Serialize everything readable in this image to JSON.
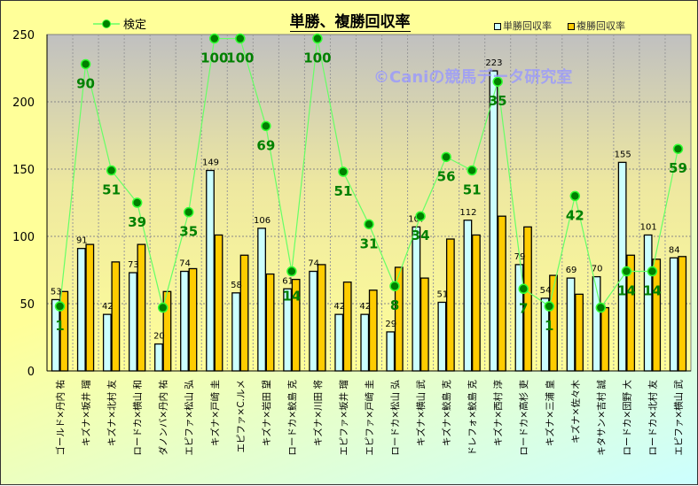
{
  "chart_data": {
    "type": "bar",
    "title": "単勝、複勝回収率",
    "watermark": "©Caniの競馬データ研究室",
    "ylim": [
      0,
      250
    ],
    "yticks": [
      0,
      50,
      100,
      150,
      200,
      250
    ],
    "grid": true,
    "categories": [
      "ゴールド×丹内 祐",
      "キズナ×坂井 瑠",
      "キズナ×北村 友",
      "ロードカ×横山 和",
      "ダノンバ×丹内 祐",
      "エピファ×松山 弘",
      "キズナ×戸崎 圭",
      "エピファ×C.ルメ",
      "キズナ×岩田 望",
      "ロードカ×鮫島 克",
      "キズナ×川田 将",
      "エピファ×坂井 瑠",
      "エピファ×戸崎 圭",
      "ロードカ×松山 弘",
      "キズナ×横山 武",
      "キズナ×鮫島 克",
      "ドレフォ×鮫島 克",
      "キズナ×西村 淳",
      "ロードカ×高杉 吏",
      "キズナ×三浦 皇",
      "キズナ×佐々木",
      "キタサン×吉村 誠",
      "ロードカ×団野 大",
      "ロードカ×北村 友",
      "エピファ×横山 武"
    ],
    "series": [
      {
        "name": "単勝回収率",
        "color": "#ccffff",
        "values": [
          53,
          91,
          42,
          73,
          20,
          74,
          149,
          58,
          106,
          61,
          74,
          42,
          42,
          29,
          107,
          51,
          112,
          223,
          79,
          54,
          69,
          70,
          155,
          101,
          84
        ],
        "labels": [
          "53",
          "91",
          "42",
          "73",
          "20",
          "74",
          "149",
          "58",
          "106",
          "61",
          "74",
          "42",
          "42",
          "29",
          "107",
          "51",
          "112",
          "223",
          "79",
          "54",
          "69",
          "70",
          "155",
          "101",
          "84"
        ]
      },
      {
        "name": "複勝回収率",
        "color": "#ffcc00",
        "values": [
          59,
          94,
          81,
          94,
          59,
          76,
          101,
          86,
          72,
          68,
          79,
          66,
          60,
          77,
          69,
          98,
          101,
          115,
          107,
          71,
          57,
          47,
          86,
          83,
          85
        ]
      },
      {
        "name": "検定",
        "type": "line",
        "color": "#66ff66",
        "marker": "#008000",
        "values": [
          48,
          228,
          149,
          125,
          47,
          118,
          247,
          247,
          182,
          74,
          247,
          148,
          109,
          63,
          115,
          159,
          149,
          215,
          61,
          48,
          130,
          47,
          74,
          74,
          165
        ],
        "labels": [
          "1",
          "90",
          "51",
          "39",
          "",
          "35",
          "100",
          "100",
          "69",
          "14",
          "100",
          "51",
          "31",
          "8",
          "34",
          "56",
          "51",
          "35",
          "7",
          "1",
          "42",
          "",
          "14",
          "14",
          "59"
        ]
      }
    ],
    "legend": "top"
  }
}
